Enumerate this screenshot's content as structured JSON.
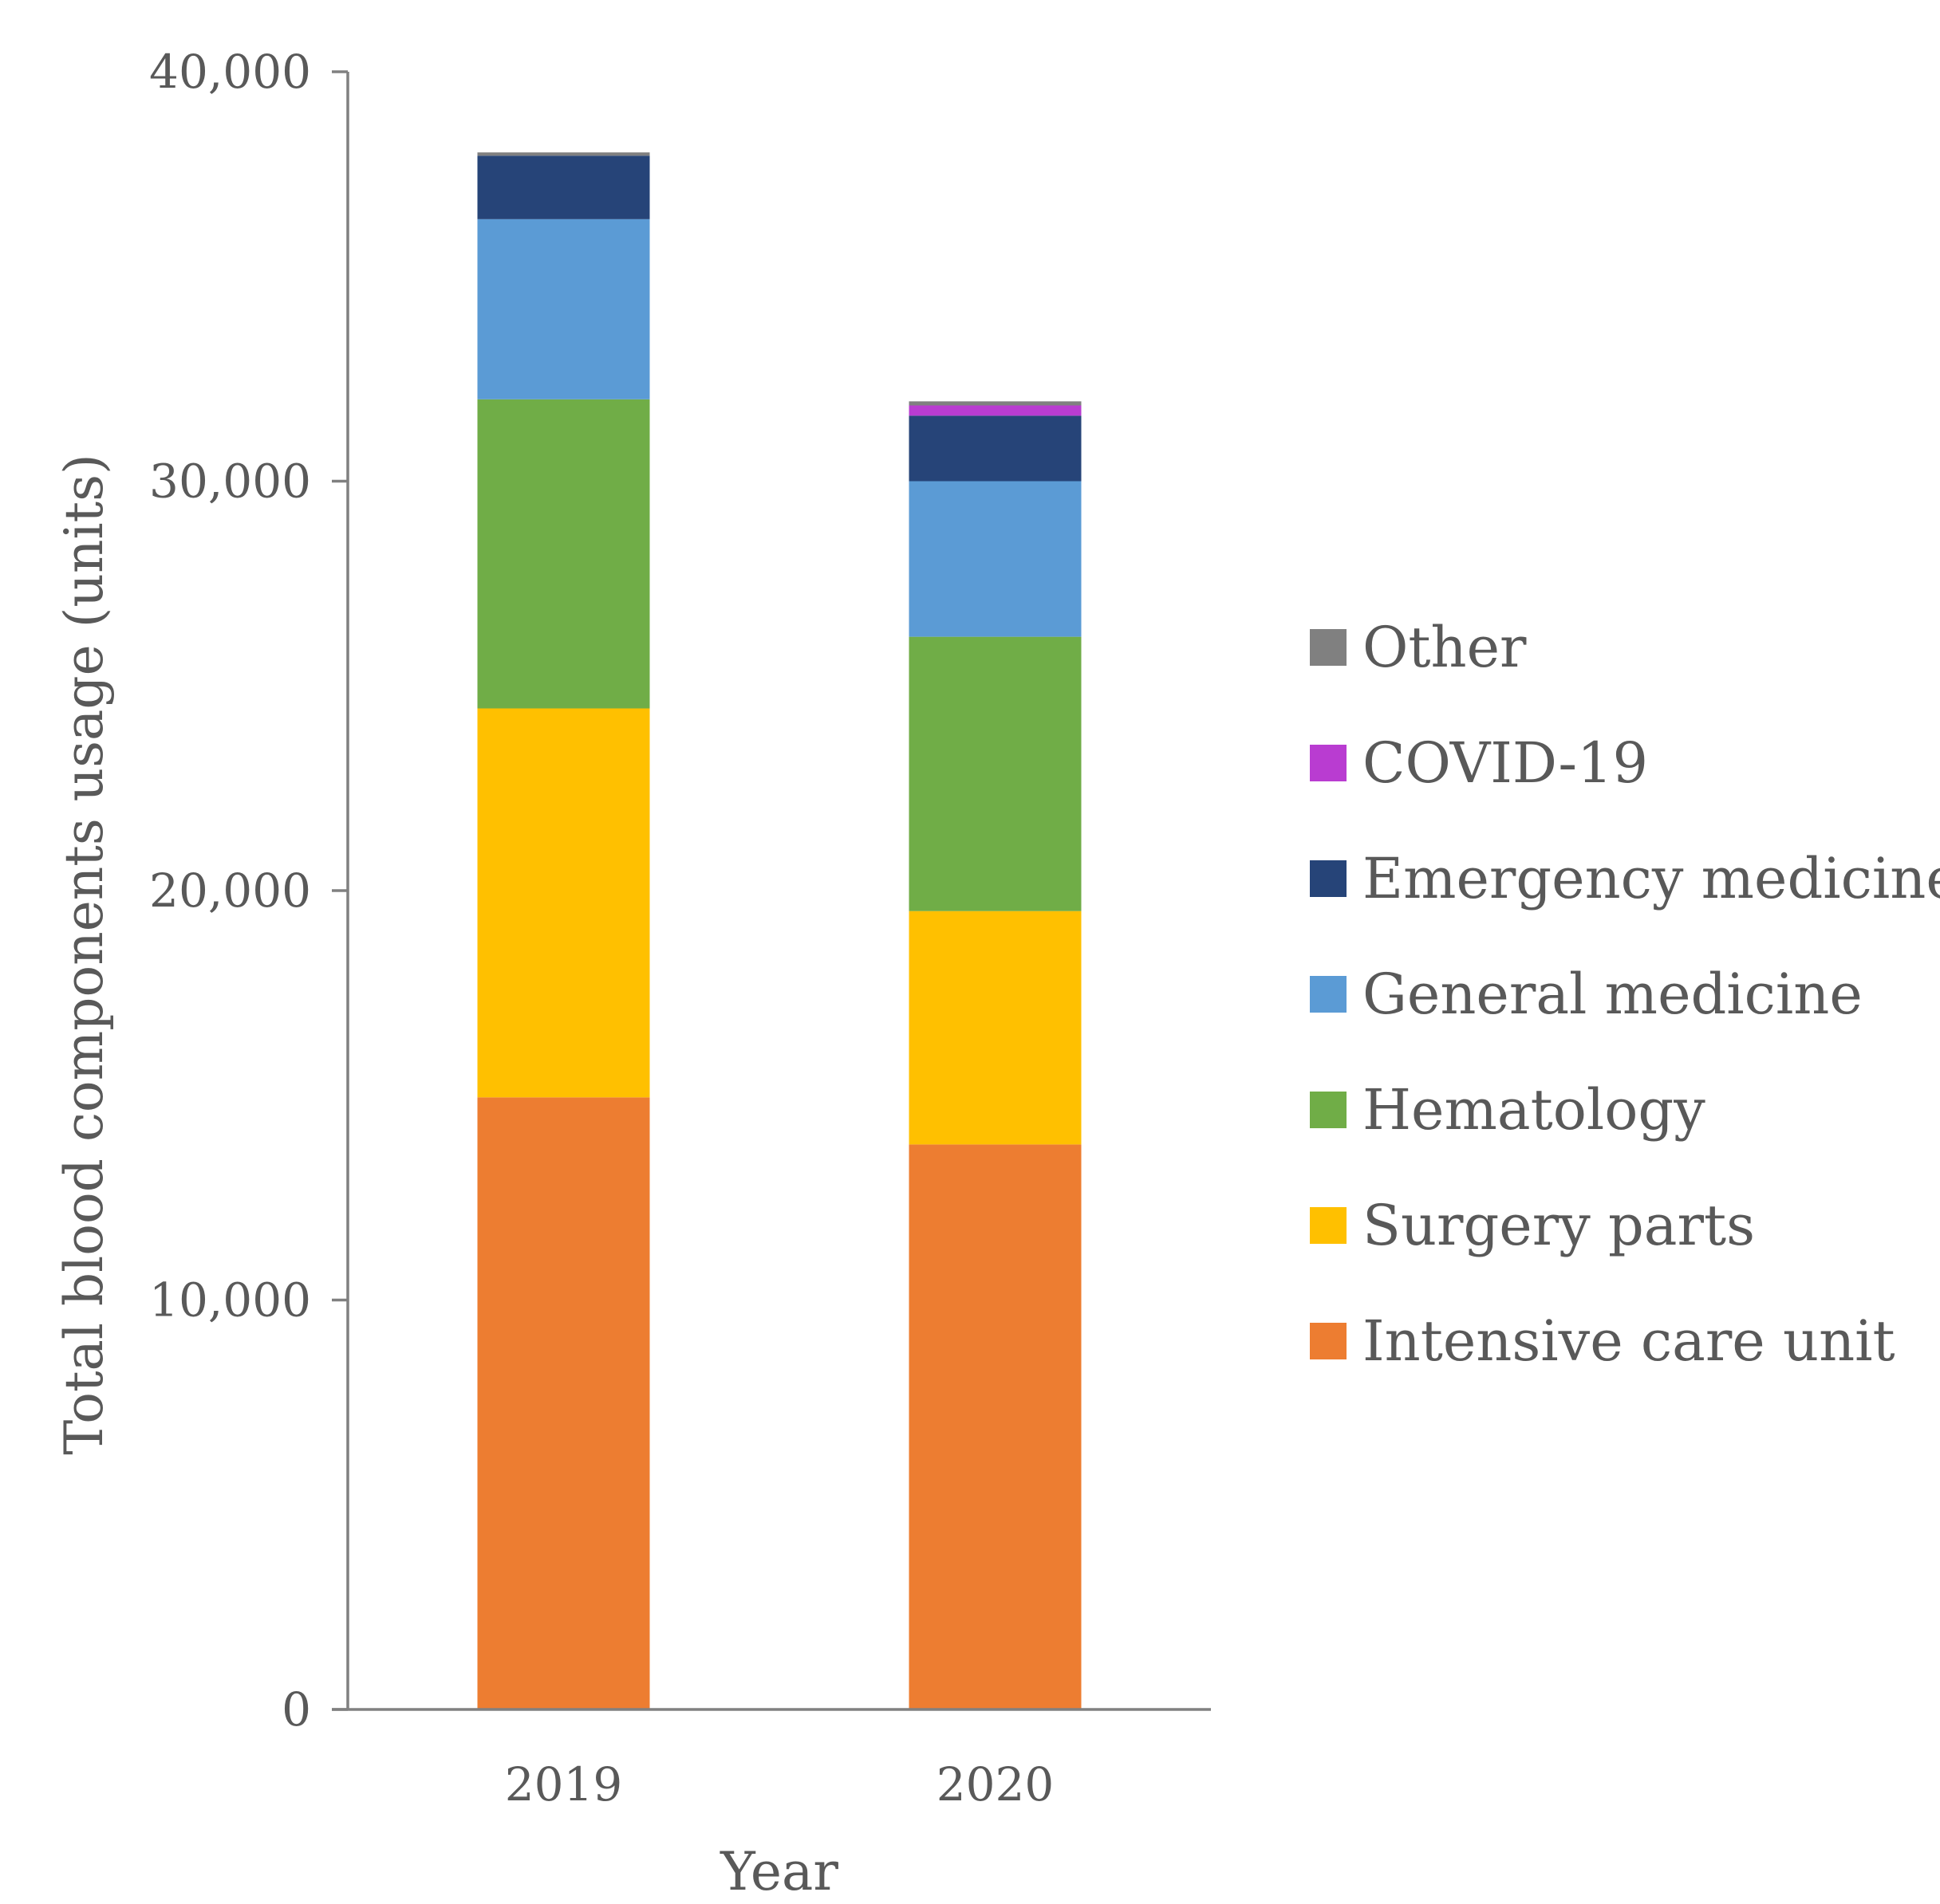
{
  "chart_data": {
    "type": "bar",
    "stacked": true,
    "title": "",
    "xlabel": "Year",
    "ylabel": "Total blood components usage (units)",
    "ylim": [
      0,
      40000
    ],
    "yticks": [
      0,
      10000,
      20000,
      30000,
      40000
    ],
    "ytick_labels": [
      "0",
      "10,000",
      "20,000",
      "30,000",
      "40,000"
    ],
    "categories": [
      "2019",
      "2020"
    ],
    "legend_position": "right",
    "series": [
      {
        "name": "Intensive care unit",
        "color": "#ED7D31",
        "values": [
          14950,
          13800
        ]
      },
      {
        "name": "Surgery parts",
        "color": "#FFC000",
        "values": [
          9500,
          5700
        ]
      },
      {
        "name": "Hematology",
        "color": "#70AD47",
        "values": [
          7550,
          6700
        ]
      },
      {
        "name": "General medicine",
        "color": "#5B9BD5",
        "values": [
          4400,
          3800
        ]
      },
      {
        "name": "Emergency medicine",
        "color": "#264478",
        "values": [
          1550,
          1600
        ]
      },
      {
        "name": "COVID-19",
        "color": "#B93CD1",
        "values": [
          0,
          250
        ]
      },
      {
        "name": "Other",
        "color": "#808080",
        "values": [
          80,
          100
        ]
      }
    ]
  }
}
